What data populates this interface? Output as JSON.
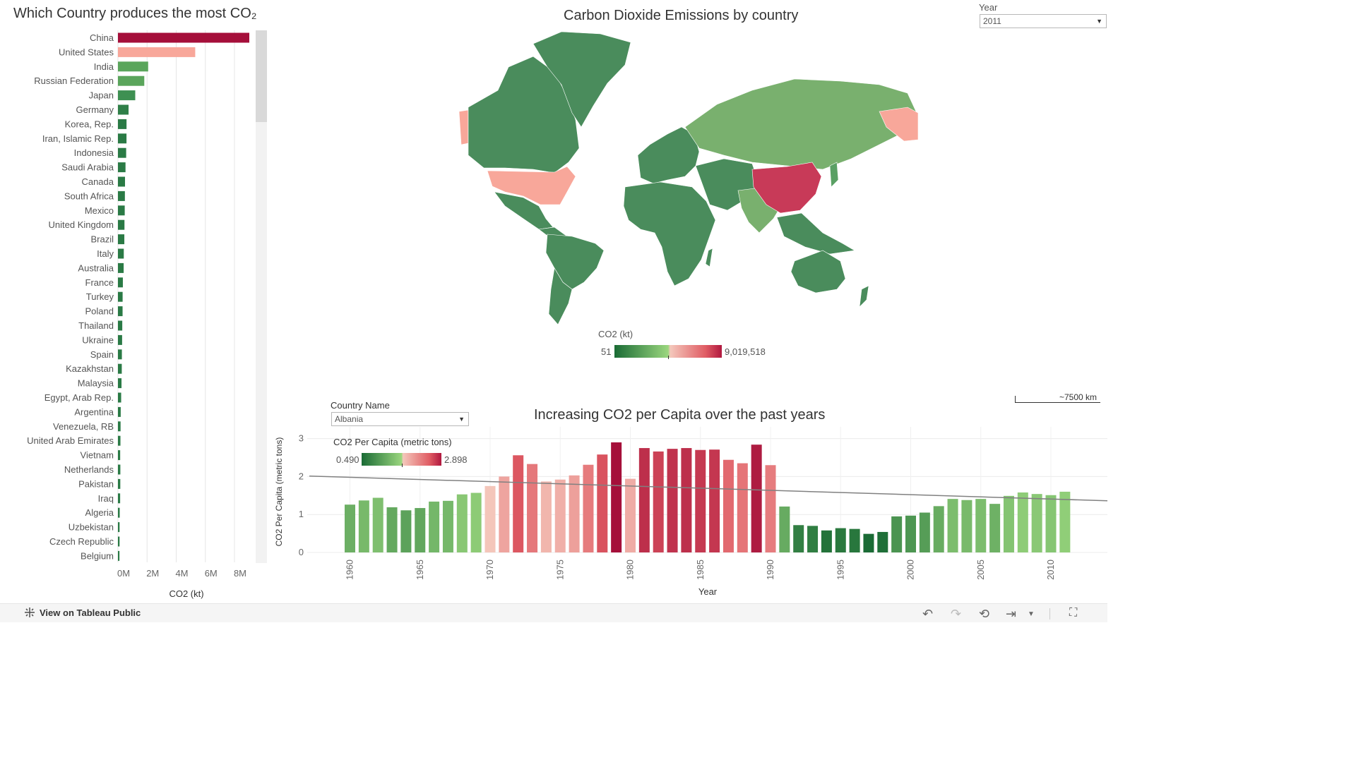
{
  "filters": {
    "year": {
      "label": "Year",
      "value": "2011"
    },
    "country": {
      "label": "Country Name",
      "value": "Albania"
    }
  },
  "bar_chart_title": "Which Country produces the most CO₂",
  "map": {
    "title": "Carbon Dioxide Emissions by country",
    "legend_title": "CO2 (kt)",
    "legend_min": "51",
    "legend_max": "9,019,518",
    "scale_label": "~7500 km",
    "country_fill": {
      "China": "#c83a58",
      "United States": "#f8a79a",
      "Russian Federation": "#79b06e",
      "India": "#79b06e",
      "Japan": "#5aa064",
      "Other": "#4a8c5c"
    }
  },
  "line_chart": {
    "title": "Increasing CO2 per Capita over the past years",
    "legend_title": "CO2 Per Capita (metric tons)",
    "legend_min": "0.490",
    "legend_max": "2.898"
  },
  "footer": {
    "view_label": "View on Tableau Public"
  },
  "colors": {
    "low": "#1a6b35",
    "mid_green": "#9ad67e",
    "mid_pink": "#f4b8a8",
    "high": "#a50f3a"
  },
  "chart_data": [
    {
      "type": "bar",
      "orientation": "horizontal",
      "title": "Which Country produces the most CO₂",
      "xlabel": "CO2 (kt)",
      "xlim": [
        0,
        9000000
      ],
      "xticks": [
        "0M",
        "2M",
        "4M",
        "6M",
        "8M"
      ],
      "xtick_values": [
        0,
        2000000,
        4000000,
        6000000,
        8000000
      ],
      "categories": [
        "China",
        "United States",
        "India",
        "Russian Federation",
        "Japan",
        "Germany",
        "Korea, Rep.",
        "Iran, Islamic Rep.",
        "Indonesia",
        "Saudi Arabia",
        "Canada",
        "South Africa",
        "Mexico",
        "United Kingdom",
        "Brazil",
        "Italy",
        "Australia",
        "France",
        "Turkey",
        "Poland",
        "Thailand",
        "Ukraine",
        "Spain",
        "Kazakhstan",
        "Malaysia",
        "Egypt, Arab Rep.",
        "Argentina",
        "Venezuela, RB",
        "United Arab Emirates",
        "Vietnam",
        "Netherlands",
        "Pakistan",
        "Iraq",
        "Algeria",
        "Uzbekistan",
        "Czech Republic",
        "Belgium"
      ],
      "values": [
        9019518,
        5305570,
        2074345,
        1808073,
        1187657,
        729458,
        589426,
        587160,
        564000,
        519000,
        485000,
        477000,
        466000,
        448000,
        439000,
        401000,
        392000,
        338000,
        321000,
        318000,
        297000,
        286000,
        270000,
        263000,
        245000,
        220000,
        190000,
        180000,
        171000,
        153000,
        165000,
        161000,
        151000,
        122000,
        112000,
        111000,
        103000
      ],
      "bar_colors": [
        "#a50f3a",
        "#f8a79a",
        "#5aa55b",
        "#5aa55b",
        "#3e9052",
        "#2f7f48",
        "#2a7a45",
        "#2a7a45",
        "#2a7a45",
        "#2a7a45",
        "#2a7a45",
        "#2a7a45",
        "#2a7a45",
        "#2a7a45",
        "#2a7a45",
        "#2a7a45",
        "#2a7a45",
        "#2a7a45",
        "#2a7a45",
        "#2a7a45",
        "#2a7a45",
        "#2a7a45",
        "#2a7a45",
        "#2a7a45",
        "#2a7a45",
        "#2a7a45",
        "#2a7a45",
        "#2a7a45",
        "#2a7a45",
        "#2a7a45",
        "#2a7a45",
        "#2a7a45",
        "#2a7a45",
        "#2a7a45",
        "#2a7a45",
        "#2a7a45",
        "#2a7a45"
      ]
    },
    {
      "type": "bar",
      "title": "Increasing CO2 per Capita over the past years",
      "xlabel": "Year",
      "ylabel": "CO2 Per Capita (metric tons)",
      "ylim": [
        0,
        3
      ],
      "yticks": [
        0,
        1,
        2,
        3
      ],
      "xticks": [
        1960,
        1965,
        1970,
        1975,
        1980,
        1985,
        1990,
        1995,
        2000,
        2005,
        2010
      ],
      "categories": [
        1960,
        1961,
        1962,
        1963,
        1964,
        1965,
        1966,
        1967,
        1968,
        1969,
        1970,
        1971,
        1972,
        1973,
        1974,
        1975,
        1976,
        1977,
        1978,
        1979,
        1980,
        1981,
        1982,
        1983,
        1984,
        1985,
        1986,
        1987,
        1988,
        1989,
        1990,
        1991,
        1992,
        1993,
        1994,
        1995,
        1996,
        1997,
        1998,
        1999,
        2000,
        2001,
        2002,
        2003,
        2004,
        2005,
        2006,
        2007,
        2008,
        2009,
        2010,
        2011
      ],
      "values": [
        1.26,
        1.37,
        1.44,
        1.19,
        1.11,
        1.17,
        1.34,
        1.36,
        1.53,
        1.57,
        1.75,
        2.0,
        2.56,
        2.33,
        1.87,
        1.92,
        2.03,
        2.31,
        2.58,
        2.9,
        1.94,
        2.75,
        2.66,
        2.73,
        2.75,
        2.7,
        2.71,
        2.44,
        2.35,
        2.84,
        2.3,
        1.21,
        0.72,
        0.7,
        0.58,
        0.64,
        0.62,
        0.49,
        0.54,
        0.95,
        0.97,
        1.05,
        1.22,
        1.41,
        1.38,
        1.41,
        1.28,
        1.49,
        1.58,
        1.54,
        1.51,
        1.6
      ],
      "trend_line": {
        "x": [
          1960,
          2015
        ],
        "y": [
          1.98,
          1.35
        ]
      }
    }
  ]
}
